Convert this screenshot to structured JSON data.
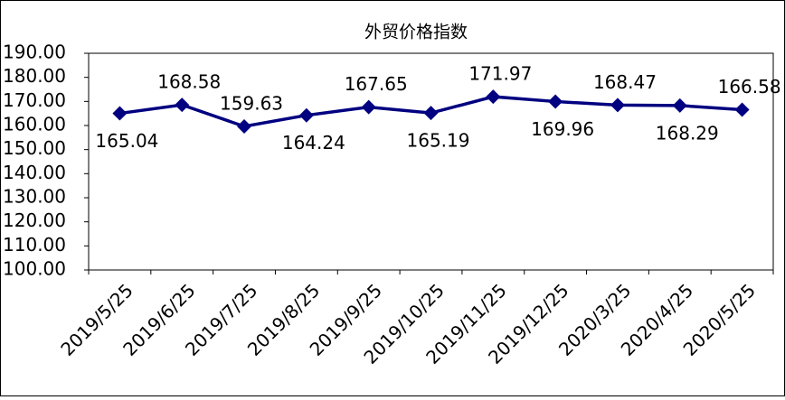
{
  "chart_data": {
    "type": "line",
    "title": "外贸价格指数",
    "categories": [
      "2019/5/25",
      "2019/6/25",
      "2019/7/25",
      "2019/8/25",
      "2019/9/25",
      "2019/10/25",
      "2019/11/25",
      "2019/12/25",
      "2020/3/25",
      "2020/4/25",
      "2020/5/25"
    ],
    "values": [
      165.04,
      168.58,
      159.63,
      164.24,
      167.65,
      165.19,
      171.97,
      169.96,
      168.47,
      168.29,
      166.58
    ],
    "color": "#000080",
    "ylim": [
      100,
      190
    ],
    "yticks": [
      {
        "value": 100,
        "label": "100.00"
      },
      {
        "value": 110,
        "label": "110.00"
      },
      {
        "value": 120,
        "label": "120.00"
      },
      {
        "value": 130,
        "label": "130.00"
      },
      {
        "value": 140,
        "label": "140.00"
      },
      {
        "value": 150,
        "label": "150.00"
      },
      {
        "value": 160,
        "label": "160.00"
      },
      {
        "value": 170,
        "label": "170.00"
      },
      {
        "value": 180,
        "label": "180.00"
      },
      {
        "value": 190,
        "label": "190.00"
      }
    ],
    "grid": false
  }
}
